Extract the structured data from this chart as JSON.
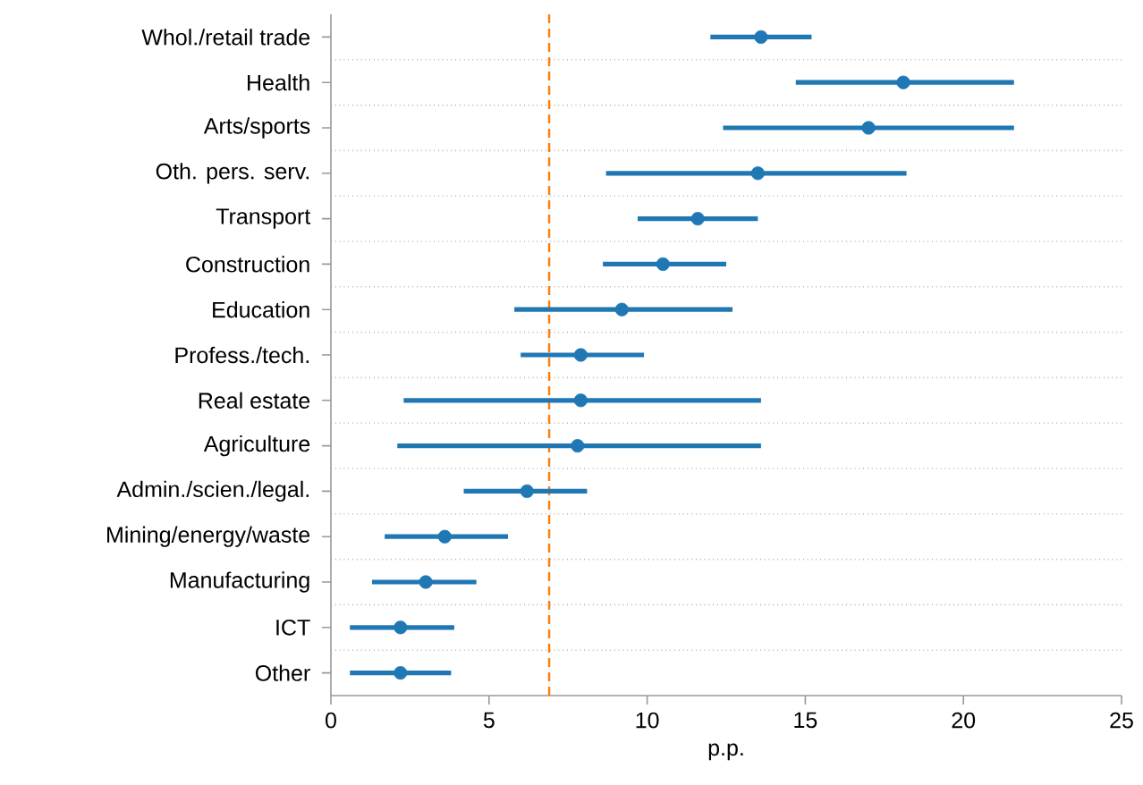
{
  "chart_data": {
    "type": "scatter",
    "orientation": "horizontal",
    "categories": [
      "Whol./retail trade",
      "Health",
      "Arts/sports",
      "Oth. pers. serv.",
      "Transport",
      "Construction",
      "Education",
      "Profess./tech.",
      "Real estate",
      "Agriculture",
      "Admin./scien./legal.",
      "Mining/energy/waste",
      "Manufacturing",
      "ICT",
      "Other"
    ],
    "values": [
      13.6,
      18.1,
      17.0,
      13.5,
      11.6,
      10.5,
      9.2,
      7.9,
      7.9,
      7.8,
      6.2,
      3.6,
      3.0,
      2.2,
      2.2
    ],
    "errors": [
      [
        12.0,
        15.2
      ],
      [
        14.7,
        21.6
      ],
      [
        12.4,
        21.6
      ],
      [
        8.7,
        18.2
      ],
      [
        9.7,
        13.5
      ],
      [
        8.6,
        12.5
      ],
      [
        5.8,
        12.7
      ],
      [
        6.0,
        9.9
      ],
      [
        2.3,
        13.6
      ],
      [
        2.1,
        13.6
      ],
      [
        4.2,
        8.1
      ],
      [
        1.7,
        5.6
      ],
      [
        1.3,
        4.6
      ],
      [
        0.6,
        3.9
      ],
      [
        0.6,
        3.8
      ]
    ],
    "color": "#1f77b4",
    "marker": "circle",
    "xlim": [
      0,
      25
    ],
    "xticks": [
      0,
      5,
      10,
      15,
      20,
      25
    ],
    "xlabel": "p.p.",
    "grid": "y",
    "ref_lines": [
      {
        "axis": "x",
        "value": 6.9,
        "color": "#ff7f0e",
        "line_style": "dashed"
      }
    ]
  }
}
